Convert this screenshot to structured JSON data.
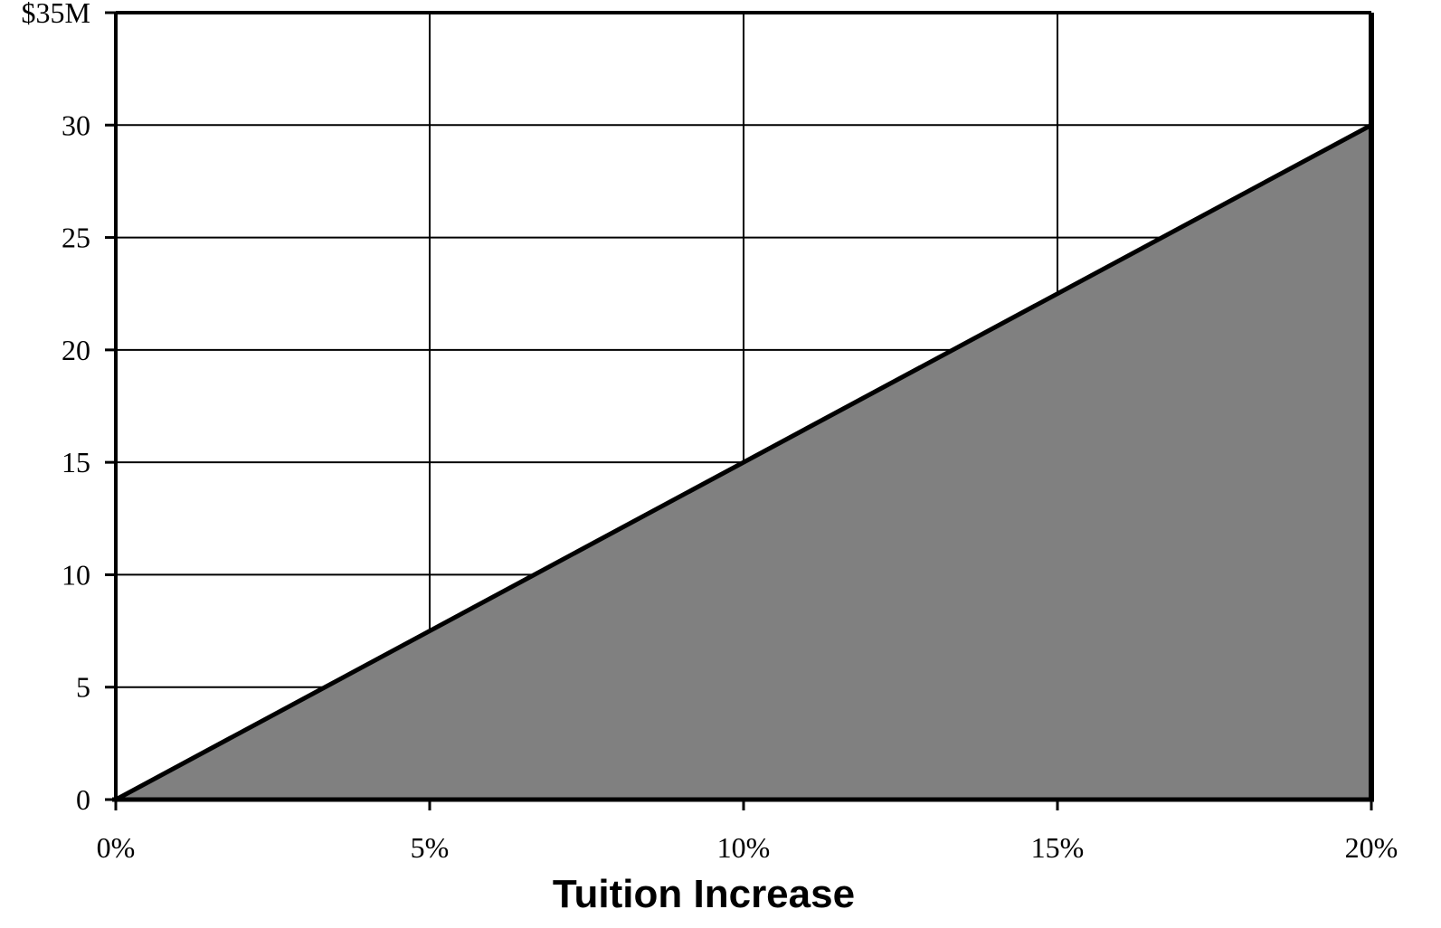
{
  "chart_data": {
    "type": "area",
    "xlabel": "Tuition Increase",
    "ylabel": "",
    "xlim": [
      0,
      20
    ],
    "ylim": [
      0,
      35
    ],
    "x_ticks": [
      {
        "value": 0,
        "label": "0%"
      },
      {
        "value": 5,
        "label": "5%"
      },
      {
        "value": 10,
        "label": "10%"
      },
      {
        "value": 15,
        "label": "15%"
      },
      {
        "value": 20,
        "label": "20%"
      }
    ],
    "y_ticks": [
      {
        "value": 0,
        "label": "0"
      },
      {
        "value": 5,
        "label": "5"
      },
      {
        "value": 10,
        "label": "10"
      },
      {
        "value": 15,
        "label": "15"
      },
      {
        "value": 20,
        "label": "20"
      },
      {
        "value": 25,
        "label": "25"
      },
      {
        "value": 30,
        "label": "30"
      },
      {
        "value": 35,
        "label": "$35M"
      }
    ],
    "grid": true,
    "series": [
      {
        "x": [
          0,
          20
        ],
        "y": [
          0,
          30
        ],
        "fill_color": "#808080",
        "line_color": "#000000"
      }
    ]
  }
}
